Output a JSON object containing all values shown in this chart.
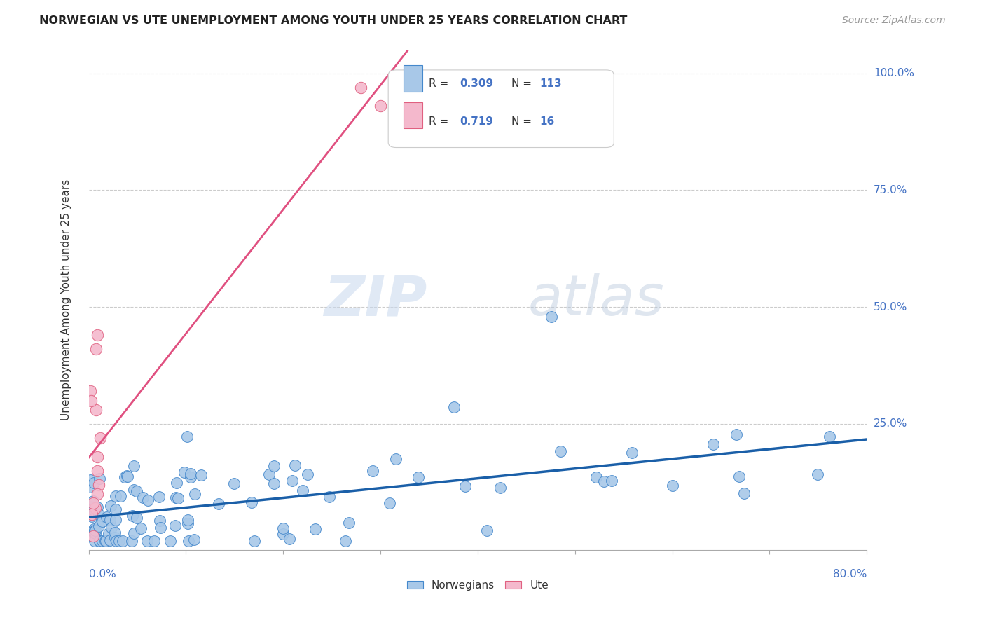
{
  "title": "NORWEGIAN VS UTE UNEMPLOYMENT AMONG YOUTH UNDER 25 YEARS CORRELATION CHART",
  "source": "Source: ZipAtlas.com",
  "ylabel": "Unemployment Among Youth under 25 years",
  "watermark_zip": "ZIP",
  "watermark_atlas": "atlas",
  "r_norwegian": 0.309,
  "n_norwegian": 113,
  "r_ute": 0.719,
  "n_ute": 16,
  "color_norwegian_fill": "#a8c8e8",
  "color_norwegian_edge": "#4488cc",
  "color_ute_fill": "#f4b8cc",
  "color_ute_edge": "#e06080",
  "color_line_norwegian": "#1a5fa8",
  "color_line_ute": "#e05080",
  "background_color": "#ffffff",
  "xlim": [
    0,
    0.8
  ],
  "ylim": [
    -0.02,
    1.05
  ]
}
